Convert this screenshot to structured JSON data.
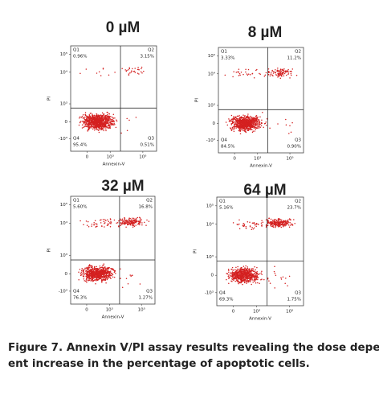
{
  "panels": [
    {
      "title": "0 µM",
      "y_label": "PI",
      "x_label": "Annexin-V",
      "yticks": [
        "10⁵",
        "10⁴",
        "10³",
        "0",
        "-10³"
      ],
      "xticks": [
        "0",
        "10³",
        "10⁵"
      ],
      "quadrants": [
        {
          "name": "Q1",
          "percent": "0.96%"
        },
        {
          "name": "Q2",
          "percent": "3.15%"
        },
        {
          "name": "Q4",
          "percent": "95.4%"
        },
        {
          "name": "Q3",
          "percent": "0.51%"
        }
      ]
    },
    {
      "title": "8 µM",
      "y_label": "PI",
      "x_label": "Annexin-V",
      "yticks": [
        "10⁵",
        "10⁴",
        "10³",
        "0",
        "-10³"
      ],
      "xticks": [
        "0",
        "10³",
        "10⁵"
      ],
      "quadrants": [
        {
          "name": "Q1",
          "percent": "3.33%"
        },
        {
          "name": "Q2",
          "percent": "11.2%"
        },
        {
          "name": "Q4",
          "percent": "84.5%"
        },
        {
          "name": "Q3",
          "percent": "0.90%"
        }
      ]
    },
    {
      "title": "32 µM",
      "y_label": "PI",
      "x_label": "Annexin-V",
      "yticks": [
        "10⁵",
        "10⁴",
        "10³",
        "0",
        "-10³"
      ],
      "xticks": [
        "0",
        "10³",
        "10⁵"
      ],
      "quadrants": [
        {
          "name": "Q1",
          "percent": "5.60%"
        },
        {
          "name": "Q2",
          "percent": "16.8%"
        },
        {
          "name": "Q4",
          "percent": "76.3%"
        },
        {
          "name": "Q3",
          "percent": "1.27%"
        }
      ]
    },
    {
      "title": "64 µM",
      "y_label": "PI",
      "x_label": "Annexin-V",
      "yticks": [
        "10⁵",
        "10⁴",
        "10³",
        "0",
        "-10³"
      ],
      "xticks": [
        "0",
        "10³",
        "10⁵"
      ],
      "quadrants": [
        {
          "name": "Q1",
          "percent": "5.16%"
        },
        {
          "name": "Q2",
          "percent": "23.7%"
        },
        {
          "name": "Q4",
          "percent": "69.3%"
        },
        {
          "name": "Q3",
          "percent": "1.75%"
        }
      ]
    }
  ],
  "caption": [
    "Figure 7. Annexin V/PI assay results revealing the dose depend-",
    "ent increase in the percentage of apoptotic cells."
  ]
}
